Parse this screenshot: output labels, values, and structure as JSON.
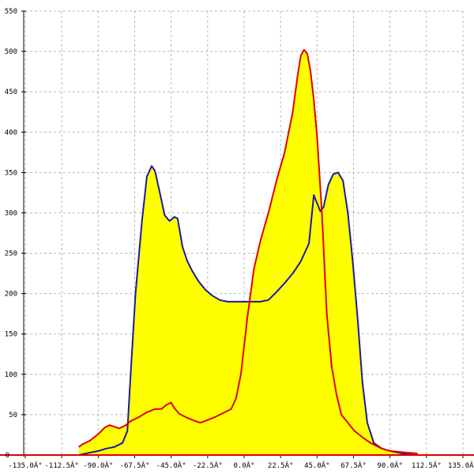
{
  "chart_data": {
    "type": "area",
    "title": "",
    "xlabel": "",
    "ylabel": "",
    "xlim": [
      -135,
      135
    ],
    "ylim": [
      0,
      550
    ],
    "grid": true,
    "x_ticks": [
      -135,
      -112.5,
      -90,
      -67.5,
      -45,
      -22.5,
      0,
      22.5,
      45,
      67.5,
      90,
      112.5,
      135
    ],
    "x_tick_labels": [
      "-135.0Â°",
      "-112.5Â°",
      "-90.0Â°",
      "-67.5Â°",
      "-45.0Â°",
      "-22.5Â°",
      "0.0Â°",
      "22.5Â°",
      "45.0Â°",
      "67.5Â°",
      "90.0Â°",
      "112.5Â°",
      "135.0Â°"
    ],
    "y_ticks": [
      50,
      100,
      150,
      200,
      250,
      300,
      350,
      400,
      450,
      500,
      550
    ],
    "y_tick_labels": [
      "50",
      "100",
      "150",
      "200",
      "250",
      "300",
      "350",
      "400",
      "450",
      "500",
      "550"
    ],
    "zero_label": "0",
    "fill_color": "#ffff00",
    "series": [
      {
        "color": "#1a1aa0",
        "points": [
          [
            -102,
            0
          ],
          [
            -95,
            3
          ],
          [
            -90,
            5
          ],
          [
            -85,
            8
          ],
          [
            -80,
            10
          ],
          [
            -75,
            15
          ],
          [
            -72,
            30
          ],
          [
            -70,
            100
          ],
          [
            -67,
            200
          ],
          [
            -63,
            290
          ],
          [
            -60,
            345
          ],
          [
            -57,
            358
          ],
          [
            -55,
            352
          ],
          [
            -52,
            325
          ],
          [
            -49,
            297
          ],
          [
            -46,
            290
          ],
          [
            -43,
            295
          ],
          [
            -41,
            293
          ],
          [
            -38,
            258
          ],
          [
            -35,
            240
          ],
          [
            -32,
            228
          ],
          [
            -28,
            215
          ],
          [
            -24,
            205
          ],
          [
            -20,
            198
          ],
          [
            -15,
            192
          ],
          [
            -10,
            190
          ],
          [
            -5,
            190
          ],
          [
            0,
            190
          ],
          [
            5,
            190
          ],
          [
            10,
            190
          ],
          [
            15,
            192
          ],
          [
            20,
            202
          ],
          [
            25,
            213
          ],
          [
            30,
            225
          ],
          [
            35,
            240
          ],
          [
            40,
            262
          ],
          [
            43,
            322
          ],
          [
            45,
            312
          ],
          [
            47,
            302
          ],
          [
            49,
            307
          ],
          [
            52,
            335
          ],
          [
            55,
            348
          ],
          [
            58,
            350
          ],
          [
            61,
            340
          ],
          [
            64,
            300
          ],
          [
            67,
            240
          ],
          [
            70,
            170
          ],
          [
            73,
            90
          ],
          [
            76,
            40
          ],
          [
            80,
            15
          ],
          [
            85,
            8
          ],
          [
            90,
            5
          ],
          [
            95,
            3
          ],
          [
            100,
            1
          ],
          [
            107,
            0
          ]
        ]
      },
      {
        "color": "#e00000",
        "points": [
          [
            -102,
            10
          ],
          [
            -100,
            13
          ],
          [
            -95,
            18
          ],
          [
            -90,
            26
          ],
          [
            -86,
            34
          ],
          [
            -83,
            37
          ],
          [
            -80,
            35
          ],
          [
            -77,
            33
          ],
          [
            -73,
            37
          ],
          [
            -70,
            42
          ],
          [
            -65,
            47
          ],
          [
            -60,
            53
          ],
          [
            -55,
            57
          ],
          [
            -51,
            57
          ],
          [
            -48,
            62
          ],
          [
            -45,
            65
          ],
          [
            -43,
            58
          ],
          [
            -40,
            51
          ],
          [
            -35,
            46
          ],
          [
            -30,
            42
          ],
          [
            -27,
            40
          ],
          [
            -23,
            43
          ],
          [
            -18,
            47
          ],
          [
            -12,
            53
          ],
          [
            -8,
            57
          ],
          [
            -5,
            70
          ],
          [
            -2,
            100
          ],
          [
            2,
            170
          ],
          [
            6,
            230
          ],
          [
            10,
            265
          ],
          [
            15,
            300
          ],
          [
            20,
            340
          ],
          [
            25,
            375
          ],
          [
            30,
            425
          ],
          [
            33,
            470
          ],
          [
            35,
            495
          ],
          [
            37,
            502
          ],
          [
            39,
            497
          ],
          [
            41,
            475
          ],
          [
            43,
            440
          ],
          [
            45,
            395
          ],
          [
            48,
            300
          ],
          [
            51,
            175
          ],
          [
            54,
            110
          ],
          [
            57,
            75
          ],
          [
            60,
            50
          ],
          [
            64,
            40
          ],
          [
            68,
            30
          ],
          [
            73,
            22
          ],
          [
            78,
            15
          ],
          [
            85,
            8
          ],
          [
            90,
            5
          ],
          [
            95,
            4
          ],
          [
            100,
            3
          ],
          [
            107,
            2
          ]
        ]
      }
    ]
  }
}
